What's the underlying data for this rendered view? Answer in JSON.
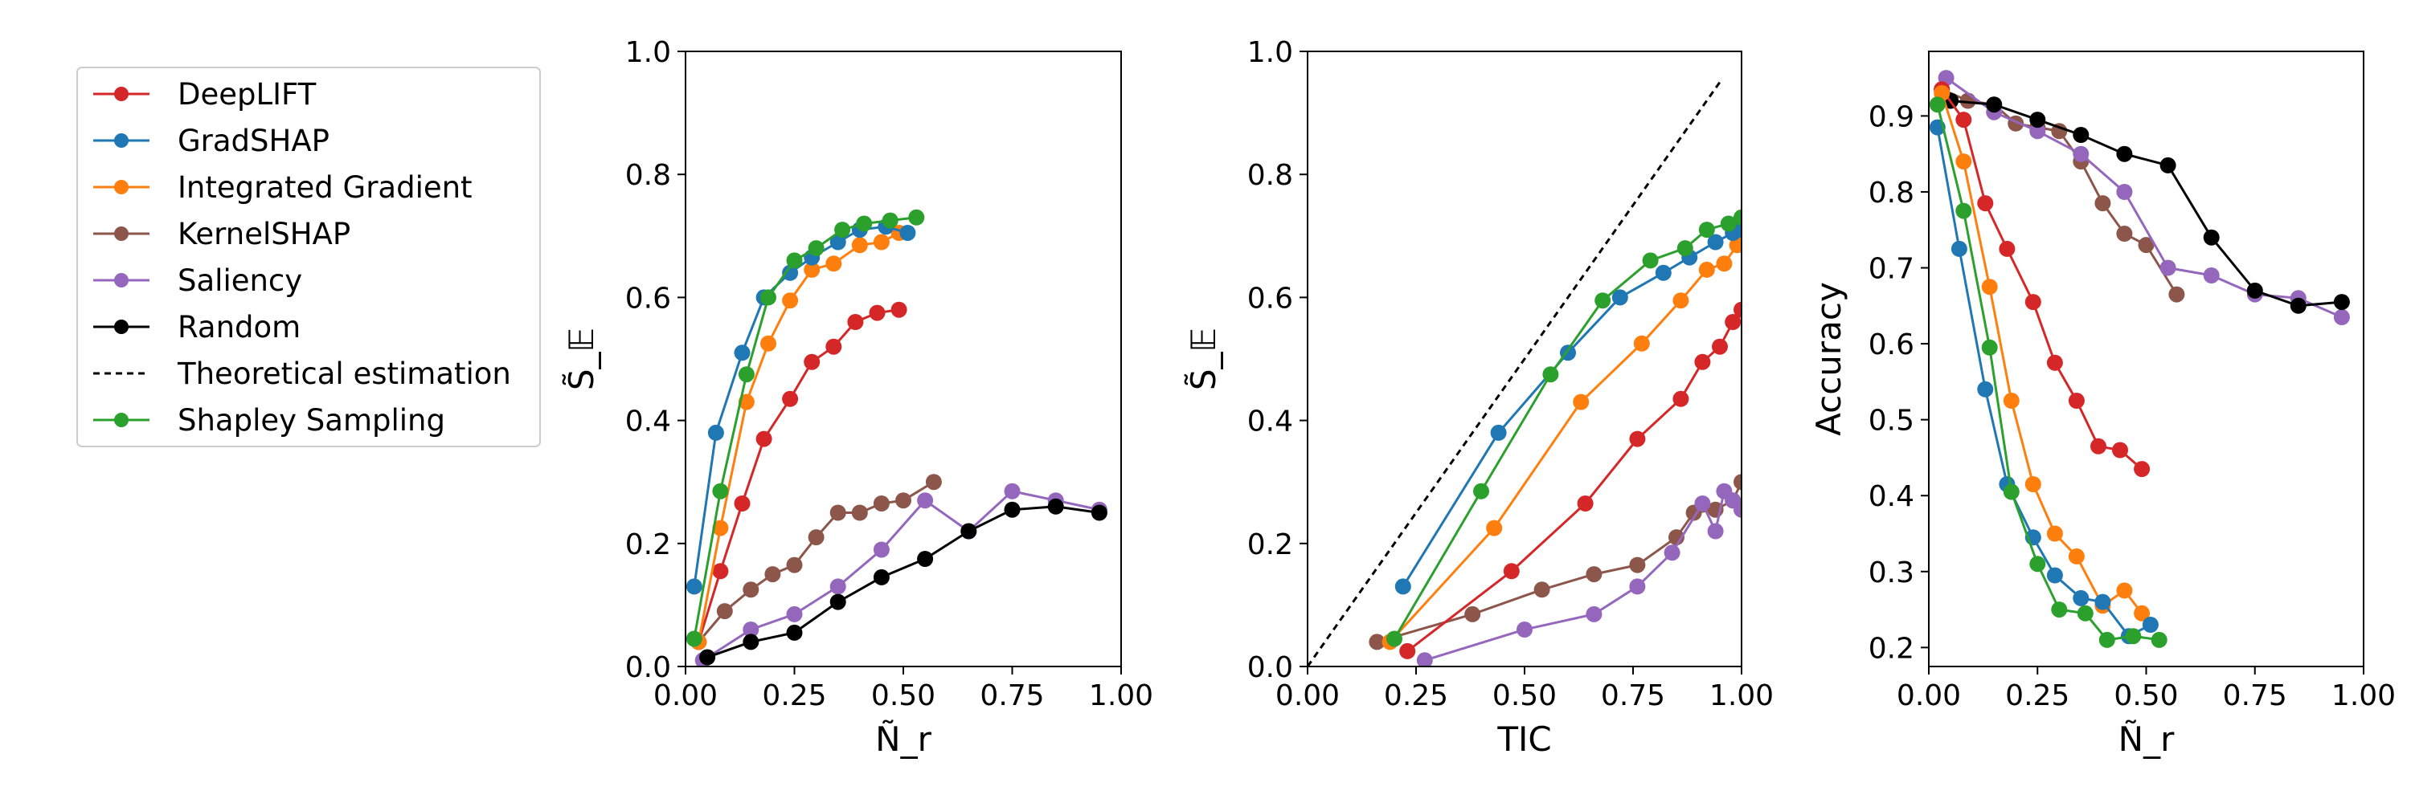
{
  "legend": {
    "items": [
      {
        "label": "DeepLIFT",
        "color": "#d62728",
        "style": "solid-marker"
      },
      {
        "label": "GradSHAP",
        "color": "#1f77b4",
        "style": "solid-marker"
      },
      {
        "label": "Integrated Gradient",
        "color": "#ff7f0e",
        "style": "solid-marker"
      },
      {
        "label": "KernelSHAP",
        "color": "#8c564b",
        "style": "solid-marker"
      },
      {
        "label": "Saliency",
        "color": "#9467bd",
        "style": "solid-marker"
      },
      {
        "label": "Random",
        "color": "#000000",
        "style": "solid-marker"
      },
      {
        "label": "Theoretical estimation",
        "color": "#000000",
        "style": "dashed"
      },
      {
        "label": "Shapley Sampling",
        "color": "#2ca02c",
        "style": "solid-marker"
      }
    ]
  },
  "chart_data": [
    {
      "type": "line",
      "xlabel": "Ñ_r",
      "ylabel": "S̃_𝔼",
      "xlim": [
        0,
        1
      ],
      "ylim": [
        0,
        1
      ],
      "xticks": [
        "0.00",
        "0.25",
        "0.50",
        "0.75",
        "1.00"
      ],
      "yticks": [
        "0.0",
        "0.2",
        "0.4",
        "0.6",
        "0.8",
        "1.0"
      ],
      "xtick_values": [
        0,
        0.25,
        0.5,
        0.75,
        1.0
      ],
      "ytick_values": [
        0,
        0.2,
        0.4,
        0.6,
        0.8,
        1.0
      ],
      "series": [
        {
          "name": "KernelSHAP",
          "color": "#8c564b",
          "x": [
            0.03,
            0.09,
            0.15,
            0.2,
            0.25,
            0.3,
            0.35,
            0.4,
            0.45,
            0.5,
            0.57
          ],
          "y": [
            0.04,
            0.09,
            0.125,
            0.15,
            0.165,
            0.21,
            0.25,
            0.25,
            0.265,
            0.27,
            0.3
          ]
        },
        {
          "name": "Saliency",
          "color": "#9467bd",
          "x": [
            0.04,
            0.15,
            0.25,
            0.35,
            0.45,
            0.55,
            0.65,
            0.75,
            0.85,
            0.95
          ],
          "y": [
            0.01,
            0.06,
            0.085,
            0.13,
            0.19,
            0.27,
            0.22,
            0.285,
            0.27,
            0.255
          ]
        },
        {
          "name": "Random",
          "color": "#000000",
          "x": [
            0.05,
            0.15,
            0.25,
            0.35,
            0.45,
            0.55,
            0.65,
            0.75,
            0.85,
            0.95
          ],
          "y": [
            0.015,
            0.04,
            0.055,
            0.105,
            0.145,
            0.175,
            0.22,
            0.255,
            0.26,
            0.25
          ]
        },
        {
          "name": "DeepLIFT",
          "color": "#d62728",
          "x": [
            0.03,
            0.08,
            0.13,
            0.18,
            0.24,
            0.29,
            0.34,
            0.39,
            0.44,
            0.49
          ],
          "y": [
            0.04,
            0.155,
            0.265,
            0.37,
            0.435,
            0.495,
            0.52,
            0.56,
            0.575,
            0.58
          ]
        },
        {
          "name": "Integrated Gradient",
          "color": "#ff7f0e",
          "x": [
            0.03,
            0.08,
            0.14,
            0.19,
            0.24,
            0.29,
            0.34,
            0.4,
            0.45,
            0.49
          ],
          "y": [
            0.04,
            0.225,
            0.43,
            0.525,
            0.595,
            0.645,
            0.655,
            0.685,
            0.69,
            0.705
          ]
        },
        {
          "name": "GradSHAP",
          "color": "#1f77b4",
          "x": [
            0.02,
            0.07,
            0.13,
            0.18,
            0.24,
            0.29,
            0.35,
            0.4,
            0.46,
            0.51
          ],
          "y": [
            0.13,
            0.38,
            0.51,
            0.6,
            0.64,
            0.665,
            0.69,
            0.71,
            0.715,
            0.705
          ]
        },
        {
          "name": "Shapley Sampling",
          "color": "#2ca02c",
          "x": [
            0.02,
            0.08,
            0.14,
            0.19,
            0.25,
            0.3,
            0.36,
            0.41,
            0.47,
            0.53
          ],
          "y": [
            0.045,
            0.285,
            0.475,
            0.6,
            0.66,
            0.68,
            0.71,
            0.72,
            0.725,
            0.73
          ]
        }
      ]
    },
    {
      "type": "line",
      "xlabel": "TIC",
      "ylabel": "S̃_𝔼",
      "xlim": [
        0,
        1
      ],
      "ylim": [
        0,
        1
      ],
      "xticks": [
        "0.00",
        "0.25",
        "0.50",
        "0.75",
        "1.00"
      ],
      "yticks": [
        "0.0",
        "0.2",
        "0.4",
        "0.6",
        "0.8",
        "1.0"
      ],
      "xtick_values": [
        0,
        0.25,
        0.5,
        0.75,
        1.0
      ],
      "ytick_values": [
        0,
        0.2,
        0.4,
        0.6,
        0.8,
        1.0
      ],
      "series": [
        {
          "name": "Theoretical estimation",
          "color": "#000000",
          "dashed": true,
          "x": [
            0.0,
            0.95
          ],
          "y": [
            0.0,
            0.95
          ]
        },
        {
          "name": "KernelSHAP",
          "color": "#8c564b",
          "x": [
            0.16,
            0.38,
            0.54,
            0.66,
            0.76,
            0.85,
            0.89,
            0.94,
            0.98,
            1.0
          ],
          "y": [
            0.04,
            0.085,
            0.125,
            0.15,
            0.165,
            0.21,
            0.25,
            0.255,
            0.27,
            0.3
          ]
        },
        {
          "name": "Saliency",
          "color": "#9467bd",
          "x": [
            0.27,
            0.5,
            0.66,
            0.76,
            0.84,
            0.91,
            0.94,
            0.96,
            0.98,
            1.0
          ],
          "y": [
            0.01,
            0.06,
            0.085,
            0.13,
            0.185,
            0.265,
            0.22,
            0.285,
            0.27,
            0.255
          ]
        },
        {
          "name": "DeepLIFT",
          "color": "#d62728",
          "x": [
            0.23,
            0.47,
            0.64,
            0.76,
            0.86,
            0.91,
            0.95,
            0.98,
            1.0
          ],
          "y": [
            0.025,
            0.155,
            0.265,
            0.37,
            0.435,
            0.495,
            0.52,
            0.56,
            0.58
          ]
        },
        {
          "name": "Integrated Gradient",
          "color": "#ff7f0e",
          "x": [
            0.19,
            0.43,
            0.63,
            0.77,
            0.86,
            0.92,
            0.96,
            0.99,
            1.0
          ],
          "y": [
            0.04,
            0.225,
            0.43,
            0.525,
            0.595,
            0.645,
            0.655,
            0.685,
            0.705
          ]
        },
        {
          "name": "GradSHAP",
          "color": "#1f77b4",
          "x": [
            0.22,
            0.44,
            0.6,
            0.72,
            0.82,
            0.88,
            0.94,
            0.98,
            1.0
          ],
          "y": [
            0.13,
            0.38,
            0.51,
            0.6,
            0.64,
            0.665,
            0.69,
            0.705,
            0.71
          ]
        },
        {
          "name": "Shapley Sampling",
          "color": "#2ca02c",
          "x": [
            0.2,
            0.4,
            0.56,
            0.68,
            0.79,
            0.87,
            0.92,
            0.97,
            1.0
          ],
          "y": [
            0.045,
            0.285,
            0.475,
            0.595,
            0.66,
            0.68,
            0.71,
            0.72,
            0.73
          ]
        }
      ]
    },
    {
      "type": "line",
      "xlabel": "Ñ_r",
      "ylabel": "Accuracy",
      "xlim": [
        0,
        1
      ],
      "ylim": [
        0.175,
        0.985
      ],
      "xticks": [
        "0.00",
        "0.25",
        "0.50",
        "0.75",
        "1.00"
      ],
      "yticks": [
        "0.2",
        "0.3",
        "0.4",
        "0.5",
        "0.6",
        "0.7",
        "0.8",
        "0.9"
      ],
      "xtick_values": [
        0,
        0.25,
        0.5,
        0.75,
        1.0
      ],
      "ytick_values": [
        0.2,
        0.3,
        0.4,
        0.5,
        0.6,
        0.7,
        0.8,
        0.9
      ],
      "series": [
        {
          "name": "KernelSHAP",
          "color": "#8c564b",
          "x": [
            0.03,
            0.09,
            0.15,
            0.2,
            0.25,
            0.3,
            0.35,
            0.4,
            0.45,
            0.5,
            0.57
          ],
          "y": [
            0.935,
            0.92,
            0.915,
            0.89,
            0.885,
            0.88,
            0.84,
            0.785,
            0.745,
            0.73,
            0.665
          ]
        },
        {
          "name": "Saliency",
          "color": "#9467bd",
          "x": [
            0.04,
            0.15,
            0.25,
            0.35,
            0.45,
            0.55,
            0.65,
            0.75,
            0.85,
            0.95
          ],
          "y": [
            0.95,
            0.905,
            0.88,
            0.85,
            0.8,
            0.7,
            0.69,
            0.665,
            0.66,
            0.635
          ]
        },
        {
          "name": "Random",
          "color": "#000000",
          "x": [
            0.05,
            0.15,
            0.25,
            0.35,
            0.45,
            0.55,
            0.65,
            0.75,
            0.85,
            0.95
          ],
          "y": [
            0.92,
            0.915,
            0.895,
            0.875,
            0.85,
            0.835,
            0.74,
            0.67,
            0.65,
            0.655
          ]
        },
        {
          "name": "DeepLIFT",
          "color": "#d62728",
          "x": [
            0.03,
            0.08,
            0.13,
            0.18,
            0.24,
            0.29,
            0.34,
            0.39,
            0.44,
            0.49
          ],
          "y": [
            0.935,
            0.895,
            0.785,
            0.725,
            0.655,
            0.575,
            0.525,
            0.465,
            0.46,
            0.435
          ]
        },
        {
          "name": "Integrated Gradient",
          "color": "#ff7f0e",
          "x": [
            0.03,
            0.08,
            0.14,
            0.19,
            0.24,
            0.29,
            0.34,
            0.4,
            0.45,
            0.49
          ],
          "y": [
            0.93,
            0.84,
            0.675,
            0.525,
            0.415,
            0.35,
            0.32,
            0.255,
            0.275,
            0.245
          ]
        },
        {
          "name": "GradSHAP",
          "color": "#1f77b4",
          "x": [
            0.02,
            0.07,
            0.13,
            0.18,
            0.24,
            0.29,
            0.35,
            0.4,
            0.46,
            0.51
          ],
          "y": [
            0.885,
            0.725,
            0.54,
            0.415,
            0.345,
            0.295,
            0.265,
            0.26,
            0.215,
            0.23
          ]
        },
        {
          "name": "Shapley Sampling",
          "color": "#2ca02c",
          "x": [
            0.02,
            0.08,
            0.14,
            0.19,
            0.25,
            0.3,
            0.36,
            0.41,
            0.47,
            0.53
          ],
          "y": [
            0.915,
            0.775,
            0.595,
            0.405,
            0.31,
            0.25,
            0.245,
            0.21,
            0.215,
            0.21
          ]
        }
      ]
    }
  ]
}
